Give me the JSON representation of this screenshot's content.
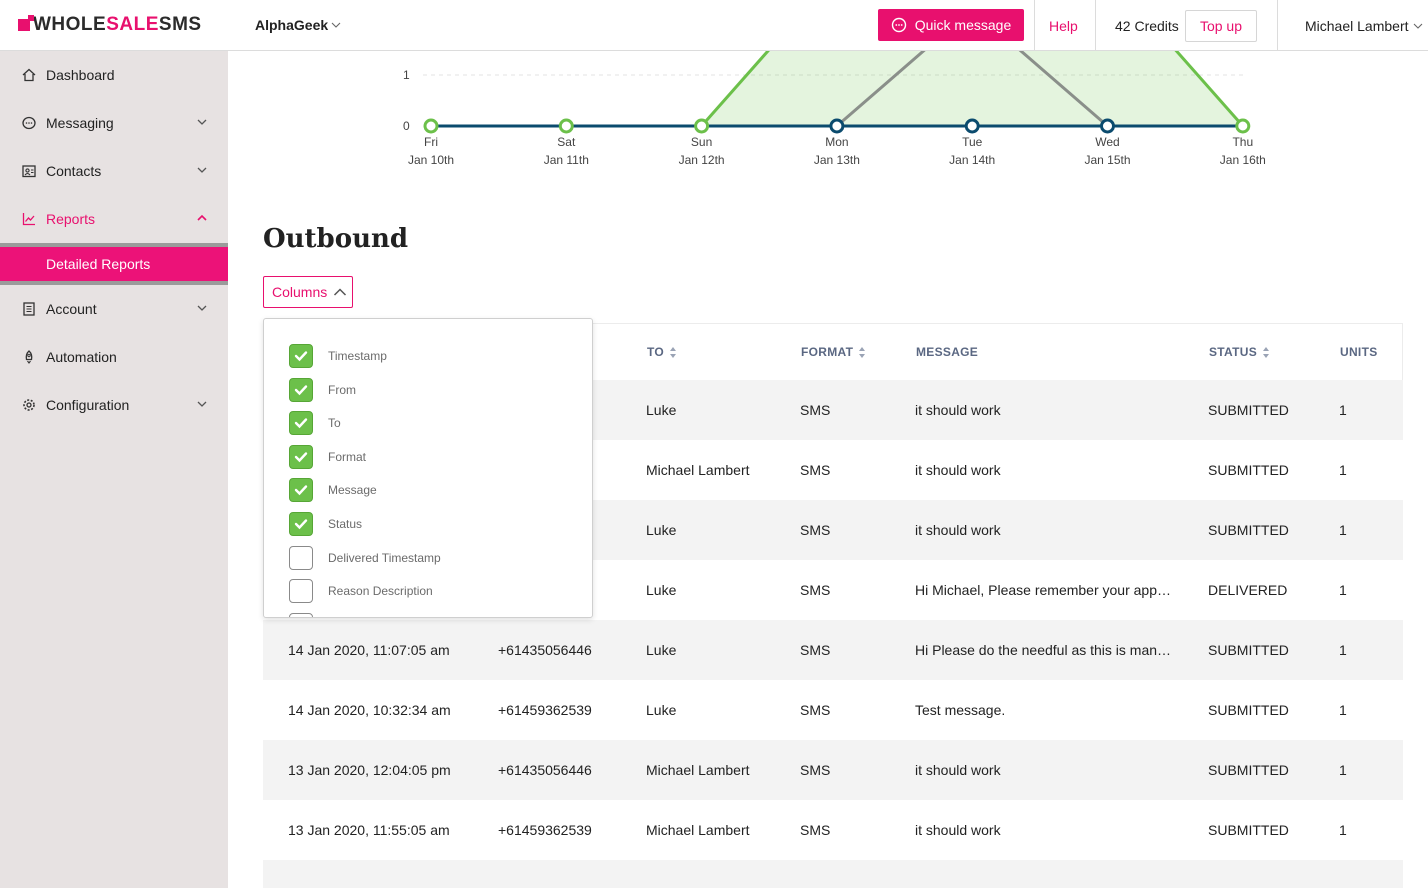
{
  "brand": {
    "logo_prefix": "WHOLE",
    "logo_highlight": "SALE",
    "logo_suffix": "SMS",
    "accent_color": "#e8106e",
    "sidebar_color": "#e7e2e2",
    "check_color": "#6cc04a"
  },
  "sidebar": {
    "items": [
      {
        "label": "Dashboard",
        "icon": "home-icon"
      },
      {
        "label": "Messaging",
        "icon": "chat-icon"
      },
      {
        "label": "Contacts",
        "icon": "contacts-icon"
      },
      {
        "label": "Reports",
        "icon": "chart-icon"
      },
      {
        "label": "Account",
        "icon": "document-icon"
      },
      {
        "label": "Automation",
        "icon": "rocket-icon"
      },
      {
        "label": "Configuration",
        "icon": "gear-icon"
      }
    ],
    "active_sub": "Detailed Reports"
  },
  "topbar": {
    "org": "AlphaGeek",
    "quick_message": "Quick message",
    "help": "Help",
    "credits": "42 Credits",
    "topup": "Top up",
    "user": "Michael Lambert"
  },
  "chart_data": {
    "type": "line",
    "x": [
      "Fri",
      "Sat",
      "Sun",
      "Mon",
      "Tue",
      "Wed",
      "Thu"
    ],
    "x_dates": [
      "Jan 10th",
      "Jan 11th",
      "Jan 12th",
      "Jan 13th",
      "Jan 14th",
      "Jan 15th",
      "Jan 16th"
    ],
    "y_ticks": [
      "1",
      "0"
    ],
    "series": [
      {
        "name": "",
        "color": "#6cc04a",
        "fill": "area",
        "values": [
          0,
          0,
          0,
          3,
          3,
          3,
          0
        ]
      },
      {
        "name": "",
        "color": "#8a8f8a",
        "values": [
          0,
          0,
          0,
          0,
          2.3,
          0,
          0
        ]
      },
      {
        "name": "",
        "color": "#0b4b6e",
        "values": [
          0,
          0,
          0,
          0,
          0,
          0,
          0
        ]
      }
    ]
  },
  "main": {
    "title": "Outbound",
    "columns_button": "Columns"
  },
  "table": {
    "headers": {
      "to": "TO",
      "format": "FORMAT",
      "message": "MESSAGE",
      "status": "STATUS",
      "units": "UNITS"
    },
    "rows": [
      {
        "timestamp": "",
        "from": "",
        "to": "Luke",
        "format": "SMS",
        "message": "it should work",
        "status": "SUBMITTED",
        "units": "1"
      },
      {
        "timestamp": "",
        "from": "",
        "to": "Michael Lambert",
        "format": "SMS",
        "message": "it should work",
        "status": "SUBMITTED",
        "units": "1"
      },
      {
        "timestamp": "",
        "from": "",
        "to": "Luke",
        "format": "SMS",
        "message": "it should work",
        "status": "SUBMITTED",
        "units": "1"
      },
      {
        "timestamp": "",
        "from": "",
        "to": "Luke",
        "format": "SMS",
        "message": "Hi Michael, Please remember your app…",
        "status": "DELIVERED",
        "units": "1"
      },
      {
        "timestamp": "14 Jan 2020, 11:07:05 am",
        "from": "+61435056446",
        "to": "Luke",
        "format": "SMS",
        "message": "Hi Please do the needful as this is man…",
        "status": "SUBMITTED",
        "units": "1"
      },
      {
        "timestamp": "14 Jan 2020, 10:32:34 am",
        "from": "+61459362539",
        "to": "Luke",
        "format": "SMS",
        "message": "Test message.",
        "status": "SUBMITTED",
        "units": "1"
      },
      {
        "timestamp": "13 Jan 2020, 12:04:05 pm",
        "from": "+61435056446",
        "to": "Michael Lambert",
        "format": "SMS",
        "message": "it should work",
        "status": "SUBMITTED",
        "units": "1"
      },
      {
        "timestamp": "13 Jan 2020, 11:55:05 am",
        "from": "+61459362539",
        "to": "Michael Lambert",
        "format": "SMS",
        "message": "it should work",
        "status": "SUBMITTED",
        "units": "1"
      }
    ]
  },
  "column_options": [
    {
      "label": "Timestamp",
      "checked": true
    },
    {
      "label": "From",
      "checked": true
    },
    {
      "label": "To",
      "checked": true
    },
    {
      "label": "Format",
      "checked": true
    },
    {
      "label": "Message",
      "checked": true
    },
    {
      "label": "Status",
      "checked": true
    },
    {
      "label": "Delivered Timestamp",
      "checked": false
    },
    {
      "label": "Reason Description",
      "checked": false
    }
  ]
}
